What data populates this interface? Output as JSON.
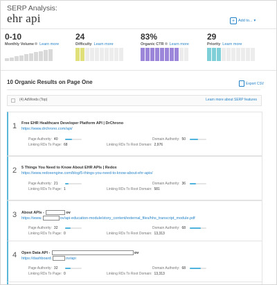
{
  "header": {
    "title": "SERP Analysis:",
    "keyword": "ehr api",
    "add_to_label": "Add to...",
    "add_to_caret": "▾",
    "add_icon": "plus-icon"
  },
  "metrics": [
    {
      "value": "0-10",
      "label": "Monthly Volume",
      "learn_more": "Learn more",
      "bar_color": "#d9d9d9",
      "bar_fill": 0.0
    },
    {
      "value": "24",
      "label": "Difficulty",
      "learn_more": "Learn more",
      "bar_color": "#e0e07a",
      "bar_fill": 0.24
    },
    {
      "value": "83%",
      "label": "Organic CTR",
      "learn_more": "Learn more",
      "bar_color": "#9b86d9",
      "bar_fill": 0.83
    },
    {
      "value": "29",
      "label": "Priority",
      "learn_more": "Learn more",
      "bar_color": "#7fcfd8",
      "bar_fill": 0.29
    }
  ],
  "results_section": {
    "title": "10 Organic Results on Page One",
    "export_label": "Export CSV",
    "adwords_label": "(4) AdWords (Top)",
    "adwords_learn_more": "Learn more about SERP features"
  },
  "labels": {
    "page_authority": "Page Authority:",
    "domain_authority": "Domain Authority:",
    "linking_rds_page": "Linking RDs To Page:",
    "linking_rds_root": "Linking RDs To Root Domain:"
  },
  "results": [
    {
      "rank": "1",
      "title": "Free EHR Healthcare Developer Platform API | DrChrono",
      "url": "https://www.drchrono.com/api/",
      "page_authority": "40",
      "pa_fraction": 0.4,
      "domain_authority": "50",
      "da_fraction": 0.5,
      "linking_page": "68",
      "linking_root": "2,976"
    },
    {
      "rank": "2",
      "title": "5 Things You Need to Know About EHR APIs | Redox",
      "url": "https://www.redoxengine.com/blog/5-things-you-need-to-know-about-ehr-apis/",
      "page_authority": "21",
      "pa_fraction": 0.21,
      "domain_authority": "36",
      "da_fraction": 0.36,
      "linking_page": "1",
      "linking_root": "581"
    },
    {
      "rank": "3",
      "title_pre": "About APIs - ",
      "title_post": "ov",
      "url_pre": "https://www.",
      "url_post": "ov/api-education-module/story_content/external_files/hhs_transcript_module.pdf",
      "page_authority": "32",
      "pa_fraction": 0.32,
      "domain_authority": "68",
      "da_fraction": 0.68,
      "linking_page": "0",
      "linking_root": "13,313"
    },
    {
      "rank": "4",
      "title_pre": "Open Data API - ",
      "title_post": "ov",
      "url_pre": "https://dashboard.",
      "url_post": "ov/api",
      "page_authority": "32",
      "pa_fraction": 0.32,
      "domain_authority": "68",
      "da_fraction": 0.68,
      "linking_page": "0",
      "linking_root": "13,313"
    }
  ]
}
